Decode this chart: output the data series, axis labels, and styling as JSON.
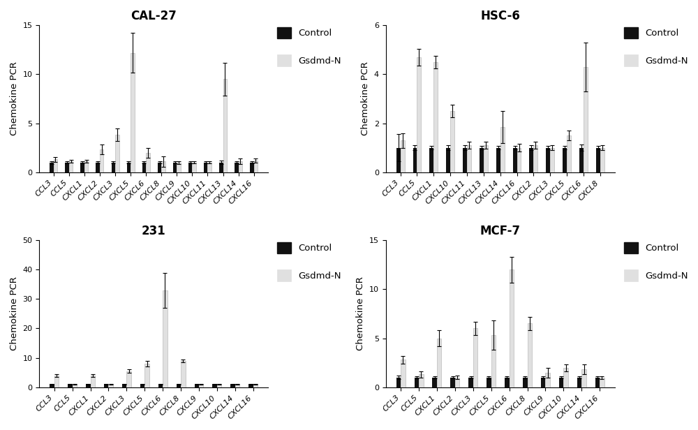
{
  "subplots": [
    {
      "title": "CAL-27",
      "ylim": [
        0,
        15
      ],
      "yticks": [
        0,
        5,
        10,
        15
      ],
      "categories": [
        "CCL3",
        "CCL5",
        "CXCL1",
        "CXCL2",
        "CXCL3",
        "CXCL5",
        "CXCL6",
        "CXCL8",
        "CXCL9",
        "CXCL10",
        "CXCL11",
        "CXCL13",
        "CXCL14",
        "CXCL16"
      ],
      "control": [
        1.0,
        1.0,
        1.0,
        1.0,
        1.0,
        1.0,
        1.0,
        1.0,
        1.0,
        1.0,
        1.0,
        1.0,
        1.0,
        1.0
      ],
      "control_err": [
        0.15,
        0.08,
        0.08,
        0.1,
        0.08,
        0.08,
        0.08,
        0.1,
        0.08,
        0.08,
        0.08,
        0.18,
        0.08,
        0.08
      ],
      "gsdmd": [
        1.3,
        1.1,
        1.1,
        2.3,
        3.8,
        12.2,
        2.0,
        1.1,
        1.0,
        1.0,
        1.0,
        9.5,
        1.1,
        1.2
      ],
      "gsdmd_err": [
        0.25,
        0.15,
        0.15,
        0.5,
        0.65,
        2.0,
        0.5,
        0.55,
        0.15,
        0.1,
        0.1,
        1.7,
        0.3,
        0.2
      ]
    },
    {
      "title": "HSC-6",
      "ylim": [
        0,
        6
      ],
      "yticks": [
        0,
        2,
        4,
        6
      ],
      "categories": [
        "CCL3",
        "CCL5",
        "CXCL1",
        "CXCL10",
        "CXCL11",
        "CXCL13",
        "CXCL14",
        "CXCL16",
        "CXCL2",
        "CXCL3",
        "CXCL5",
        "CXCL6",
        "CXCL8"
      ],
      "control": [
        1.0,
        1.0,
        1.0,
        1.0,
        1.0,
        1.0,
        1.0,
        1.0,
        1.0,
        1.0,
        1.0,
        1.0,
        1.0
      ],
      "control_err": [
        0.55,
        0.1,
        0.08,
        0.1,
        0.1,
        0.08,
        0.08,
        0.08,
        0.1,
        0.08,
        0.08,
        0.12,
        0.08
      ],
      "gsdmd": [
        1.3,
        4.7,
        4.5,
        2.5,
        1.1,
        1.1,
        1.85,
        1.0,
        1.1,
        1.0,
        1.5,
        4.3,
        1.0
      ],
      "gsdmd_err": [
        0.3,
        0.35,
        0.25,
        0.25,
        0.15,
        0.15,
        0.65,
        0.15,
        0.15,
        0.1,
        0.2,
        1.0,
        0.1
      ]
    },
    {
      "title": "231",
      "ylim": [
        0,
        50
      ],
      "yticks": [
        0,
        10,
        20,
        30,
        40,
        50
      ],
      "categories": [
        "CCL3",
        "CCL5",
        "CXCL1",
        "CXCL2",
        "CXCL3",
        "CXCL5",
        "CXCL6",
        "CXCL8",
        "CXCL9",
        "CXCL10",
        "CXCL14",
        "CXCL16"
      ],
      "control": [
        1.0,
        1.0,
        1.0,
        1.0,
        1.0,
        1.0,
        1.0,
        1.0,
        1.0,
        1.0,
        1.0,
        1.0
      ],
      "control_err": [
        0.1,
        0.08,
        0.08,
        0.08,
        0.08,
        0.08,
        0.08,
        0.08,
        0.08,
        0.08,
        0.08,
        0.08
      ],
      "gsdmd": [
        4.0,
        1.0,
        4.0,
        1.0,
        5.5,
        8.0,
        33.0,
        9.0,
        1.0,
        1.0,
        1.0,
        1.0
      ],
      "gsdmd_err": [
        0.5,
        0.15,
        0.5,
        0.15,
        0.5,
        1.0,
        6.0,
        0.5,
        0.15,
        0.1,
        0.1,
        0.1
      ]
    },
    {
      "title": "MCF-7",
      "ylim": [
        0,
        15
      ],
      "yticks": [
        0,
        5,
        10,
        15
      ],
      "categories": [
        "CCL3",
        "CCL5",
        "CXCL1",
        "CXCL2",
        "CXCL3",
        "CXCL5",
        "CXCL6",
        "CXCL8",
        "CXCL9",
        "CXCL10",
        "CXCL14",
        "CXCL16"
      ],
      "control": [
        1.0,
        1.0,
        1.0,
        1.0,
        1.0,
        1.0,
        1.0,
        1.0,
        1.0,
        1.0,
        1.0,
        1.0
      ],
      "control_err": [
        0.2,
        0.1,
        0.08,
        0.08,
        0.08,
        0.15,
        0.1,
        0.1,
        0.08,
        0.08,
        0.08,
        0.08
      ],
      "gsdmd": [
        2.8,
        1.3,
        5.0,
        1.0,
        6.0,
        5.3,
        12.0,
        6.5,
        1.5,
        2.0,
        1.8,
        1.0
      ],
      "gsdmd_err": [
        0.4,
        0.35,
        0.8,
        0.2,
        0.7,
        1.5,
        1.3,
        0.7,
        0.5,
        0.35,
        0.5,
        0.15
      ]
    }
  ],
  "control_color": "#111111",
  "gsdmd_color": "#e0e0e0",
  "gsdmd_edge_color": "#bbbbbb",
  "bar_width": 0.25,
  "ylabel": "Chemokine PCR",
  "legend_control": "Control",
  "legend_gsdmd": "Gsdmd-N",
  "background_color": "#ffffff",
  "title_fontsize": 12,
  "label_fontsize": 9.5,
  "tick_fontsize": 8
}
